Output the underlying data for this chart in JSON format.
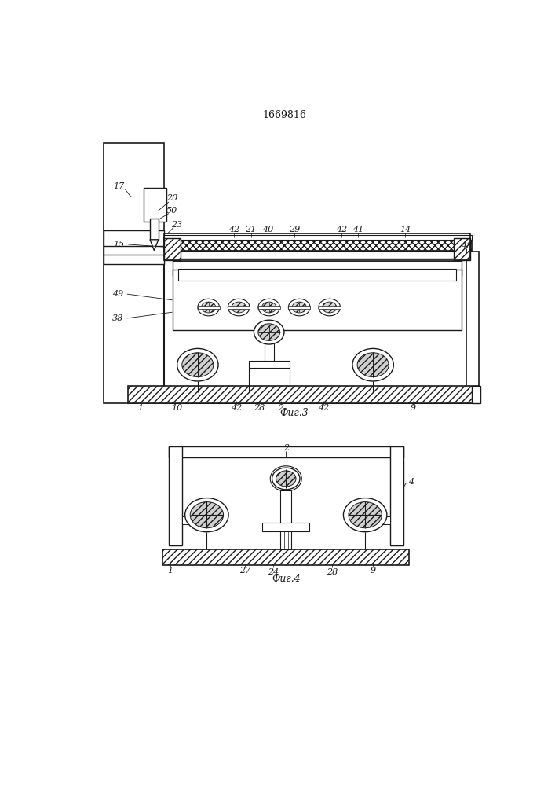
{
  "title": "1669816",
  "fig3_label": "Фиг.3",
  "fig4_label": "Фиг.4",
  "bg_color": "#ffffff",
  "line_color": "#1a1a1a"
}
